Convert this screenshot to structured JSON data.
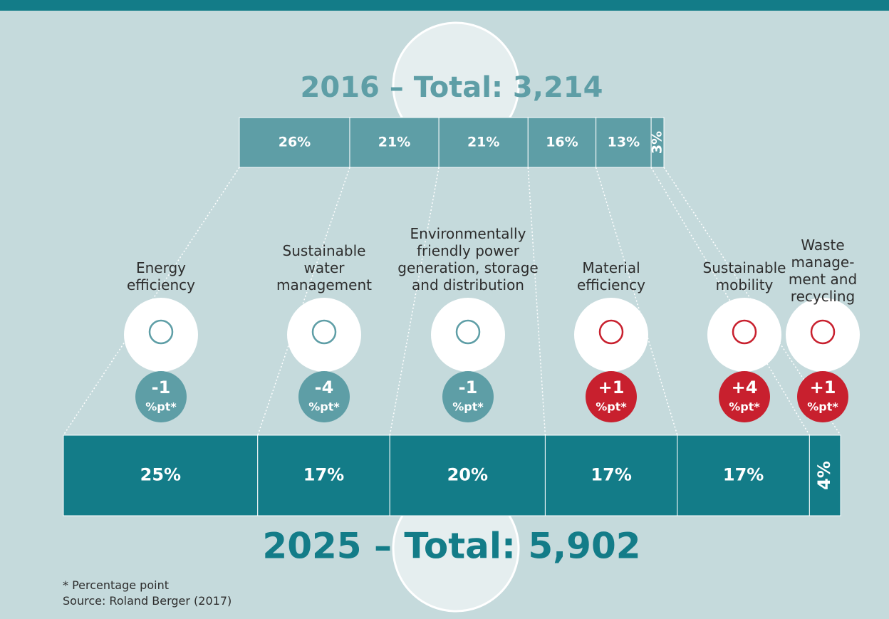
{
  "chart_data": {
    "type": "stacked-share-bars",
    "categories": [
      "Energy efficiency",
      "Sustainable water management",
      "Environmentally friendly power generation, storage and distribution",
      "Material efficiency",
      "Sustainable mobility",
      "Waste manage­ment and recycling"
    ],
    "series": [
      {
        "name": "2016 – Total: 3,214",
        "color": "#5e9ea6",
        "values": [
          26,
          21,
          21,
          16,
          13,
          3
        ],
        "value_labels": [
          "26%",
          "21%",
          "21%",
          "16%",
          "13%",
          "3%"
        ]
      },
      {
        "name": "2025 – Total: 5,902",
        "color": "#137c88",
        "values": [
          25,
          17,
          20,
          17,
          17,
          4
        ],
        "value_labels": [
          "25%",
          "17%",
          "20%",
          "17%",
          "17%",
          "4%"
        ]
      }
    ],
    "change": {
      "values": [
        -1,
        -4,
        -1,
        1,
        4,
        1
      ],
      "value_labels": [
        "-1",
        "-4",
        "-1",
        "+1",
        "+4",
        "+1"
      ],
      "unit": "%pt*",
      "negative_color": "#5e9ea6",
      "positive_color": "#c8202e"
    },
    "notes": [
      "* Percentage point",
      "Source: Roland Berger (2017)"
    ]
  }
}
